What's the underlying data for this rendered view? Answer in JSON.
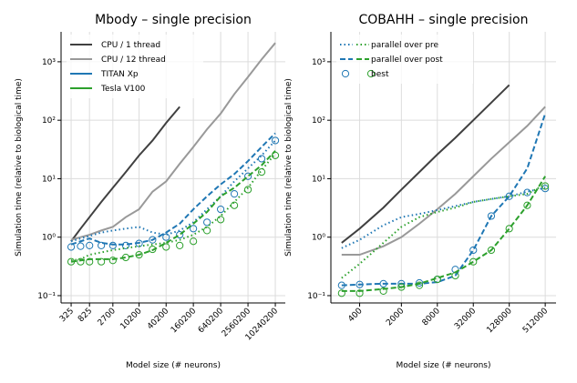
{
  "chart_data": [
    {
      "type": "line",
      "title": "Mbody – single precision",
      "xlabel": "Model size (# neurons)",
      "ylabel": "Simulation time (relative to biological time)",
      "xlog": true,
      "ylog": true,
      "grid": true,
      "legend_loc": "upper left",
      "xlim": [
        195,
        17000000
      ],
      "ylim": [
        0.075,
        3250
      ],
      "xticks": [
        325,
        825,
        2700,
        10200,
        40200,
        160200,
        640200,
        2560200,
        10240200
      ],
      "yticks": [
        {
          "value": 0.1,
          "label": "10⁻¹"
        },
        {
          "value": 1,
          "label": "10⁰"
        },
        {
          "value": 10,
          "label": "10¹"
        },
        {
          "value": 100,
          "label": "10²"
        },
        {
          "value": 1000,
          "label": "10³"
        }
      ],
      "x": [
        325,
        525,
        825,
        1500,
        2700,
        5200,
        10200,
        20200,
        40200,
        80200,
        160200,
        320200,
        640200,
        1280200,
        2560200,
        5120200,
        10240200
      ],
      "legend": [
        {
          "label": "CPU / 1 thread",
          "style": "solid",
          "colors": [
            "#404040"
          ]
        },
        {
          "label": "CPU / 12 thread",
          "style": "solid",
          "colors": [
            "#999999"
          ]
        },
        {
          "label": "TITAN Xp",
          "style": "solid",
          "colors": [
            "#1f77b4"
          ]
        },
        {
          "label": "Tesla V100",
          "style": "solid",
          "colors": [
            "#2ca02c"
          ]
        }
      ],
      "series": [
        {
          "color": "#404040",
          "style": "solid",
          "values": [
            0.85,
            1.4,
            2.2,
            4,
            7,
            13,
            25,
            45,
            90,
            170,
            null,
            null,
            null,
            null,
            null,
            null,
            null
          ]
        },
        {
          "color": "#999999",
          "style": "solid",
          "values": [
            0.9,
            1.0,
            1.1,
            1.3,
            1.5,
            2.2,
            3,
            6,
            9,
            18,
            35,
            70,
            130,
            280,
            550,
            1100,
            2100
          ]
        },
        {
          "color": "#1f77b4",
          "style": "dotted",
          "values": [
            0.85,
            0.95,
            1.05,
            1.2,
            1.3,
            1.4,
            1.5,
            1.2,
            1.1,
            1.3,
            1.8,
            3,
            5,
            9,
            15,
            25,
            45
          ]
        },
        {
          "color": "#1f77b4",
          "style": "dashed",
          "values": [
            0.75,
            0.85,
            0.95,
            0.8,
            0.75,
            0.75,
            0.8,
            0.9,
            1.2,
            1.7,
            3,
            5,
            8,
            12,
            20,
            35,
            60
          ]
        },
        {
          "color": "#1f77b4",
          "style": "markers",
          "values": [
            0.68,
            0.7,
            0.72,
            0.72,
            0.72,
            0.72,
            0.78,
            0.9,
            1.0,
            1.1,
            1.4,
            1.8,
            3,
            5.5,
            11,
            22,
            45
          ]
        },
        {
          "color": "#2ca02c",
          "style": "dotted",
          "values": [
            0.4,
            0.42,
            0.5,
            0.55,
            0.6,
            0.65,
            0.7,
            0.75,
            0.8,
            0.9,
            1.1,
            1.5,
            2.3,
            4,
            7,
            14,
            27
          ]
        },
        {
          "color": "#2ca02c",
          "style": "dashed",
          "values": [
            0.38,
            0.4,
            0.42,
            0.42,
            0.42,
            0.45,
            0.5,
            0.6,
            0.8,
            1.1,
            1.7,
            2.7,
            5,
            7,
            11,
            17,
            30
          ]
        },
        {
          "color": "#2ca02c",
          "style": "markers",
          "values": [
            0.38,
            0.38,
            0.38,
            0.38,
            0.4,
            0.45,
            0.5,
            0.62,
            0.68,
            0.72,
            0.85,
            1.3,
            2.0,
            3.5,
            6.5,
            13,
            25
          ]
        }
      ]
    },
    {
      "type": "line",
      "title": "COBAHH – single precision",
      "xlabel": "Model size (# neurons)",
      "ylabel": "Simulation time (relative to biological time)",
      "xlog": true,
      "ylog": true,
      "grid": true,
      "legend_loc": "upper left",
      "xlim": [
        132,
        777000
      ],
      "ylim": [
        0.075,
        3250
      ],
      "xticks": [
        400,
        2000,
        8000,
        32000,
        128000,
        512000
      ],
      "yticks": [
        {
          "value": 0.1,
          "label": "10⁻¹"
        },
        {
          "value": 1,
          "label": "10⁰"
        },
        {
          "value": 10,
          "label": "10¹"
        },
        {
          "value": 100,
          "label": "10²"
        },
        {
          "value": 1000,
          "label": "10³"
        }
      ],
      "x": [
        200,
        400,
        1000,
        2000,
        4000,
        8000,
        16000,
        32000,
        64000,
        128000,
        256000,
        512000
      ],
      "legend": [
        {
          "label": "parallel over pre",
          "style": "dotted",
          "colors": [
            "#1f77b4",
            "#2ca02c"
          ]
        },
        {
          "label": "parallel over post",
          "style": "dashed",
          "colors": [
            "#1f77b4",
            "#2ca02c"
          ]
        },
        {
          "label": "best",
          "style": "markers",
          "colors": [
            "#1f77b4",
            "#2ca02c"
          ]
        }
      ],
      "series": [
        {
          "color": "#404040",
          "style": "solid",
          "values": [
            0.8,
            1.4,
            3.2,
            6.5,
            13,
            26,
            50,
            100,
            200,
            400,
            null,
            null
          ]
        },
        {
          "color": "#999999",
          "style": "solid",
          "values": [
            0.5,
            0.5,
            0.7,
            1.0,
            1.7,
            3,
            5.5,
            11,
            22,
            42,
            80,
            170
          ]
        },
        {
          "color": "#1f77b4",
          "style": "dotted",
          "values": [
            0.65,
            0.9,
            1.6,
            2.2,
            2.5,
            2.9,
            3.4,
            4,
            4.5,
            5,
            6,
            7
          ]
        },
        {
          "color": "#1f77b4",
          "style": "dashed",
          "values": [
            0.15,
            0.155,
            0.16,
            0.16,
            0.16,
            0.17,
            0.22,
            0.6,
            2.3,
            5,
            15,
            130
          ]
        },
        {
          "color": "#1f77b4",
          "style": "markers",
          "values": [
            0.15,
            0.155,
            0.16,
            0.16,
            0.165,
            0.19,
            0.28,
            0.6,
            2.3,
            5,
            5.8,
            6.8
          ]
        },
        {
          "color": "#2ca02c",
          "style": "dotted",
          "values": [
            0.2,
            0.35,
            0.8,
            1.5,
            2.2,
            2.7,
            3.2,
            4,
            4.5,
            5,
            5.5,
            8
          ]
        },
        {
          "color": "#2ca02c",
          "style": "dashed",
          "values": [
            0.12,
            0.12,
            0.13,
            0.14,
            0.16,
            0.2,
            0.25,
            0.38,
            0.6,
            1.4,
            3.5,
            11
          ]
        },
        {
          "color": "#2ca02c",
          "style": "markers",
          "values": [
            0.11,
            0.11,
            0.12,
            0.14,
            0.15,
            0.19,
            0.22,
            0.38,
            0.6,
            1.4,
            3.5,
            7.5
          ]
        }
      ]
    }
  ]
}
